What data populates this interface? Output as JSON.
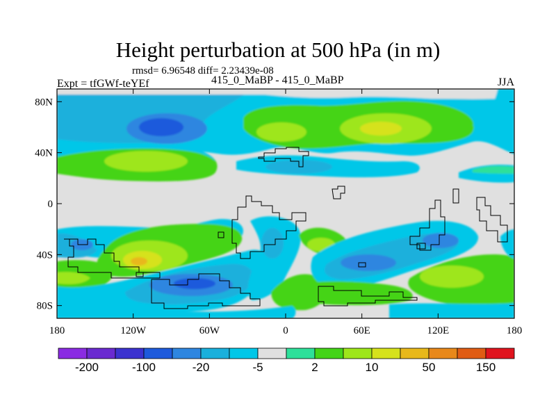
{
  "title": "Height perturbation at 500 hPa (in m)",
  "stats_text": "rmsd= 6.96548 diff= 2.23439e-08",
  "left_label": "Expt = tfGWf-teYEf",
  "center_label": "415_0_MaBP - 415_0_MaBP",
  "right_label": "JJA",
  "lon_ticks": [
    "180",
    "120W",
    "60W",
    "0",
    "60E",
    "120E",
    "180"
  ],
  "lat_ticks": [
    "80N",
    "40N",
    "0",
    "40S",
    "80S"
  ],
  "colorbar": {
    "colors": [
      "#8a2be2",
      "#6a2ad0",
      "#3c32cf",
      "#1e5adc",
      "#2e86e0",
      "#1ab0dc",
      "#00c7e8",
      "#e0e0e0",
      "#2ee09a",
      "#44d418",
      "#9ee61a",
      "#d6e21c",
      "#e8b81a",
      "#e8881a",
      "#e05c14",
      "#e0141e"
    ],
    "labels": [
      "-200",
      "-100",
      "-20",
      "-5",
      "2",
      "10",
      "50",
      "150"
    ]
  }
}
